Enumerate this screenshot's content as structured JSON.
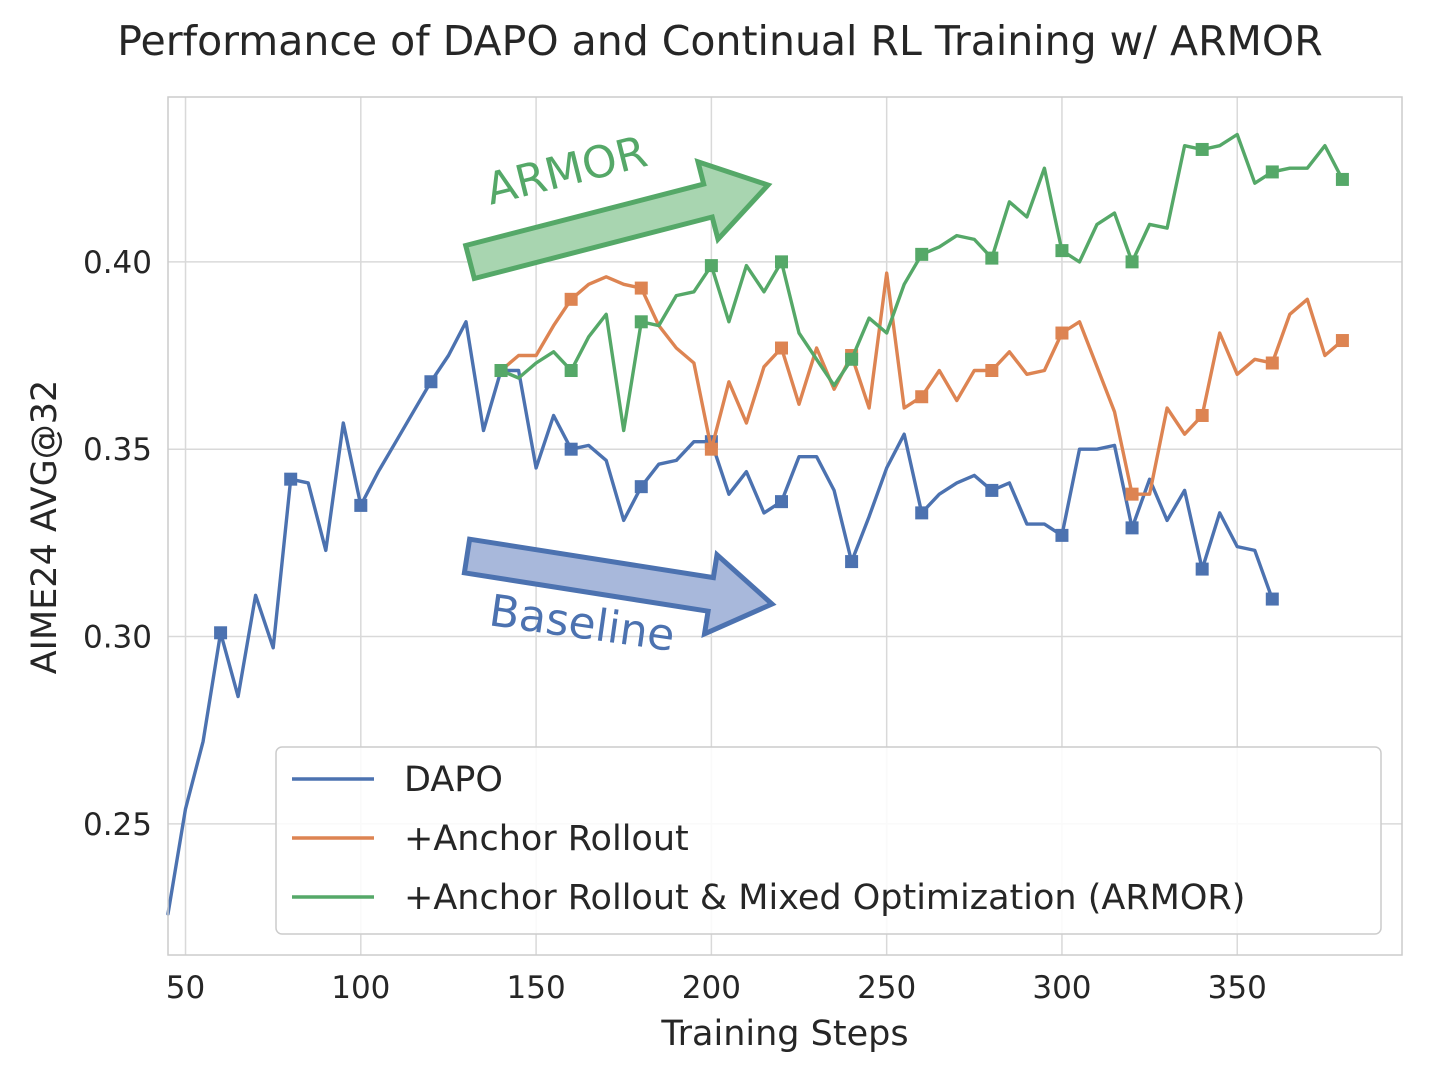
{
  "chart_data": {
    "type": "line",
    "title": "Performance of DAPO and Continual RL Training w/ ARMOR",
    "xlabel": "Training Steps",
    "ylabel": "AIME24 AVG@32",
    "xlim": [
      45,
      397
    ],
    "ylim": [
      0.215,
      0.444
    ],
    "xticks": [
      50,
      100,
      150,
      200,
      250,
      300,
      350
    ],
    "xtick_labels": [
      "50",
      "100",
      "150",
      "200",
      "250",
      "300",
      "350"
    ],
    "yticks": [
      0.25,
      0.3,
      0.35,
      0.4
    ],
    "ytick_labels": [
      "0.25",
      "0.30",
      "0.35",
      "0.40"
    ],
    "grid": true,
    "legend_position": "lower-right",
    "marker_every": 20,
    "series": [
      {
        "name": "DAPO",
        "color": "#4c72b0",
        "x": [
          45,
          50,
          55,
          60,
          65,
          70,
          75,
          80,
          85,
          90,
          95,
          100,
          105,
          110,
          115,
          120,
          125,
          130,
          135,
          140,
          145,
          150,
          155,
          160,
          165,
          170,
          175,
          180,
          185,
          190,
          195,
          200,
          205,
          210,
          215,
          220,
          225,
          230,
          235,
          240,
          245,
          250,
          255,
          260,
          265,
          270,
          275,
          280,
          285,
          290,
          295,
          300,
          305,
          310,
          315,
          320,
          325,
          330,
          335,
          340,
          345,
          350,
          355,
          360
        ],
        "y": [
          0.226,
          0.254,
          0.272,
          0.301,
          0.284,
          0.311,
          0.297,
          0.342,
          0.341,
          0.323,
          0.357,
          0.335,
          0.344,
          0.352,
          0.36,
          0.368,
          0.375,
          0.384,
          0.355,
          0.371,
          0.371,
          0.345,
          0.359,
          0.35,
          0.351,
          0.347,
          0.331,
          0.34,
          0.346,
          0.347,
          0.352,
          0.352,
          0.338,
          0.344,
          0.333,
          0.336,
          0.348,
          0.348,
          0.339,
          0.32,
          0.332,
          0.345,
          0.354,
          0.333,
          0.338,
          0.341,
          0.343,
          0.339,
          0.341,
          0.33,
          0.33,
          0.327,
          0.35,
          0.35,
          0.351,
          0.329,
          0.342,
          0.331,
          0.339,
          0.318,
          0.333,
          0.324,
          0.323,
          0.31
        ]
      },
      {
        "name": "+Anchor Rollout",
        "color": "#dd8452",
        "x": [
          140,
          145,
          150,
          155,
          160,
          165,
          170,
          175,
          180,
          185,
          190,
          195,
          200,
          205,
          210,
          215,
          220,
          225,
          230,
          235,
          240,
          245,
          250,
          255,
          260,
          265,
          270,
          275,
          280,
          285,
          290,
          295,
          300,
          305,
          310,
          315,
          320,
          325,
          330,
          335,
          340,
          345,
          350,
          355,
          360,
          365,
          370,
          375,
          380
        ],
        "y": [
          0.371,
          0.375,
          0.375,
          0.383,
          0.39,
          0.394,
          0.396,
          0.394,
          0.393,
          0.383,
          0.377,
          0.373,
          0.35,
          0.368,
          0.357,
          0.372,
          0.377,
          0.362,
          0.377,
          0.366,
          0.375,
          0.361,
          0.397,
          0.361,
          0.364,
          0.371,
          0.363,
          0.371,
          0.371,
          0.376,
          0.37,
          0.371,
          0.381,
          0.384,
          0.372,
          0.36,
          0.338,
          0.338,
          0.361,
          0.354,
          0.359,
          0.381,
          0.37,
          0.374,
          0.373,
          0.386,
          0.39,
          0.375,
          0.379
        ]
      },
      {
        "name": "+Anchor Rollout & Mixed Optimization (ARMOR)",
        "color": "#55a868",
        "x": [
          140,
          145,
          150,
          155,
          160,
          165,
          170,
          175,
          180,
          185,
          190,
          195,
          200,
          205,
          210,
          215,
          220,
          225,
          230,
          235,
          240,
          245,
          250,
          255,
          260,
          265,
          270,
          275,
          280,
          285,
          290,
          295,
          300,
          305,
          310,
          315,
          320,
          325,
          330,
          335,
          340,
          345,
          350,
          355,
          360,
          365,
          370,
          375,
          380
        ],
        "y": [
          0.371,
          0.369,
          0.373,
          0.376,
          0.371,
          0.38,
          0.386,
          0.355,
          0.384,
          0.383,
          0.391,
          0.392,
          0.399,
          0.384,
          0.399,
          0.392,
          0.4,
          0.381,
          0.374,
          0.367,
          0.374,
          0.385,
          0.381,
          0.394,
          0.402,
          0.404,
          0.407,
          0.406,
          0.401,
          0.416,
          0.412,
          0.425,
          0.403,
          0.4,
          0.41,
          0.413,
          0.4,
          0.41,
          0.409,
          0.431,
          0.43,
          0.431,
          0.434,
          0.421,
          0.424,
          0.425,
          0.425,
          0.431,
          0.422
        ]
      }
    ],
    "annotations": [
      {
        "text": "ARMOR",
        "color": "#55a868",
        "fill": "#a8d5b0"
      },
      {
        "text": "Baseline",
        "color": "#4c72b0",
        "fill": "#a8b8db"
      }
    ]
  }
}
